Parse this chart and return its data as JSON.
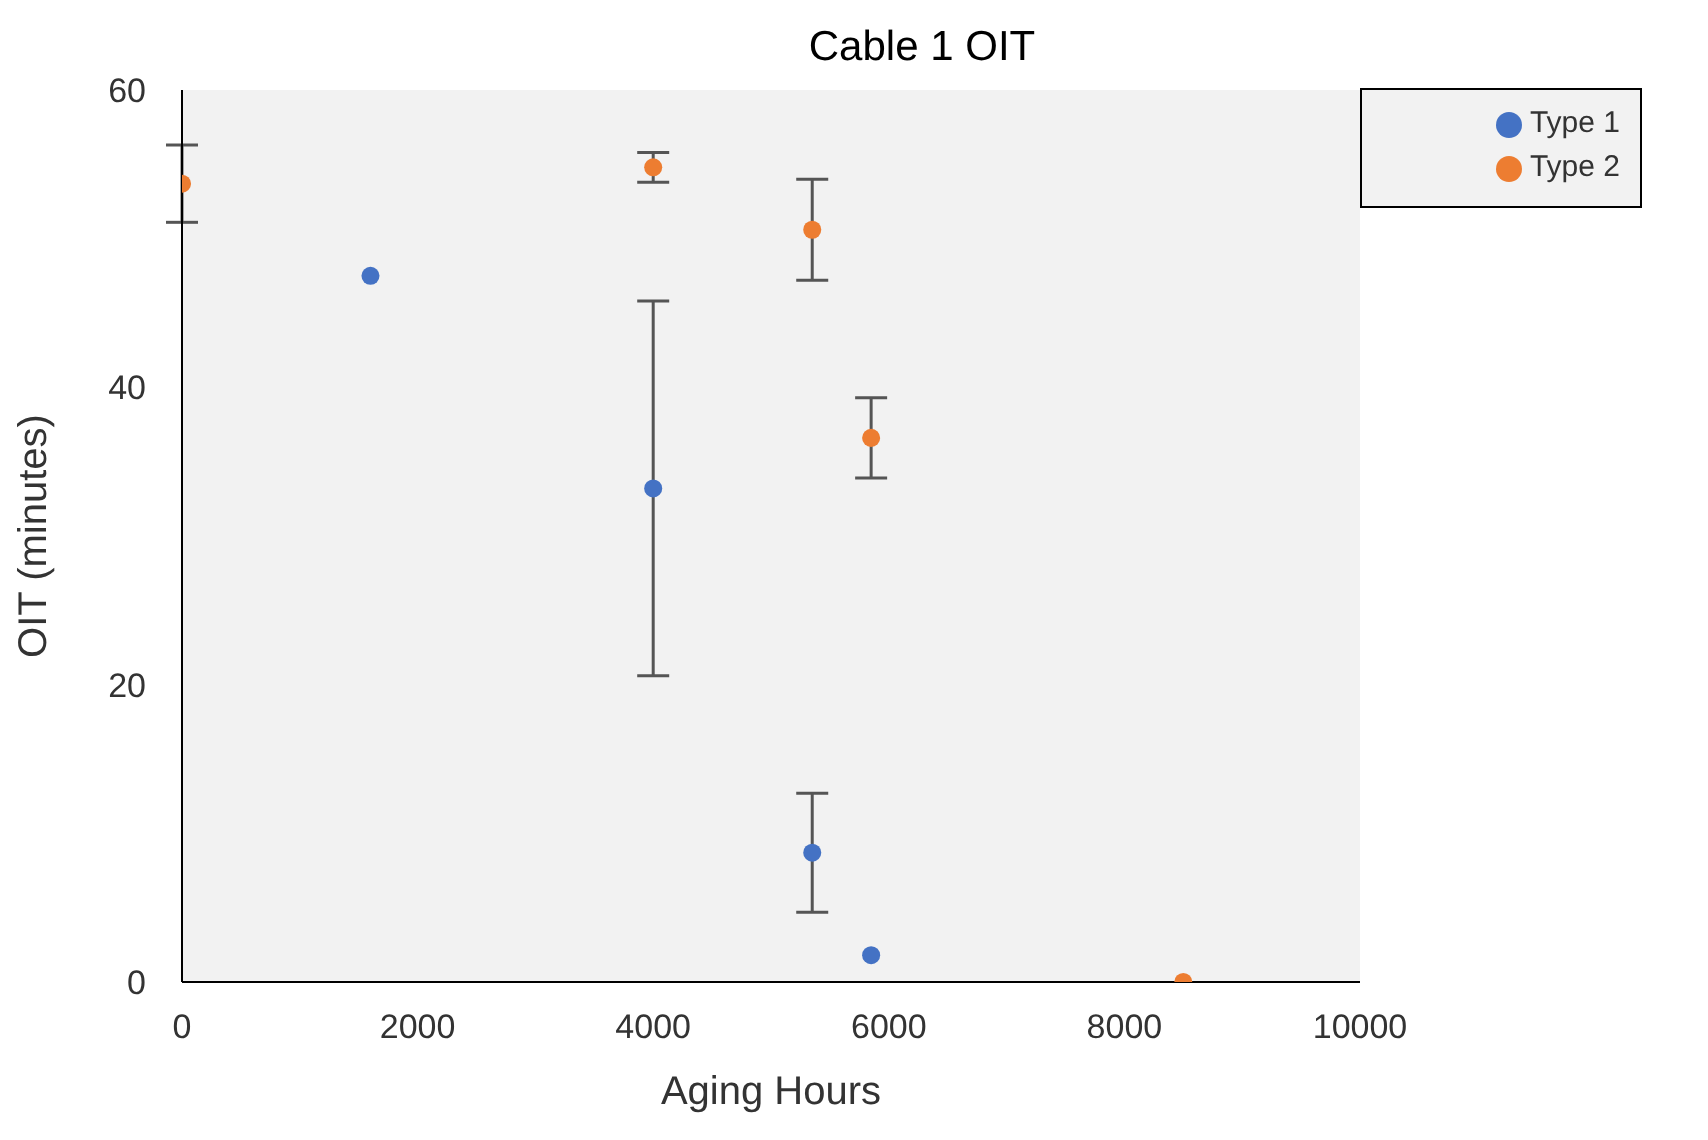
{
  "chart_data": {
    "type": "scatter",
    "title": "Cable 1 OIT",
    "xlabel": "Aging Hours",
    "ylabel": "OIT (minutes)",
    "xlim": [
      0,
      10000
    ],
    "xticks": [
      0,
      2000,
      4000,
      6000,
      8000,
      10000
    ],
    "ylim": [
      0,
      60
    ],
    "yticks": [
      0,
      20,
      40,
      60
    ],
    "grid": false,
    "legend": "top right",
    "marker": "circle",
    "series": [
      {
        "name": "Type 1",
        "color": "#4472c4",
        "x": [
          1600,
          4000,
          5350,
          5850
        ],
        "values": [
          47.5,
          33.2,
          8.7,
          1.8
        ],
        "errors": [
          null,
          12.6,
          4,
          null
        ]
      },
      {
        "name": "Type 2",
        "color": "#ed7d31",
        "x": [
          0,
          4000,
          5350,
          5850,
          8500
        ],
        "values": [
          53.7,
          54.8,
          50.6,
          36.6,
          0
        ],
        "errors": [
          2.6,
          1,
          3.4,
          2.7,
          null
        ]
      }
    ]
  }
}
